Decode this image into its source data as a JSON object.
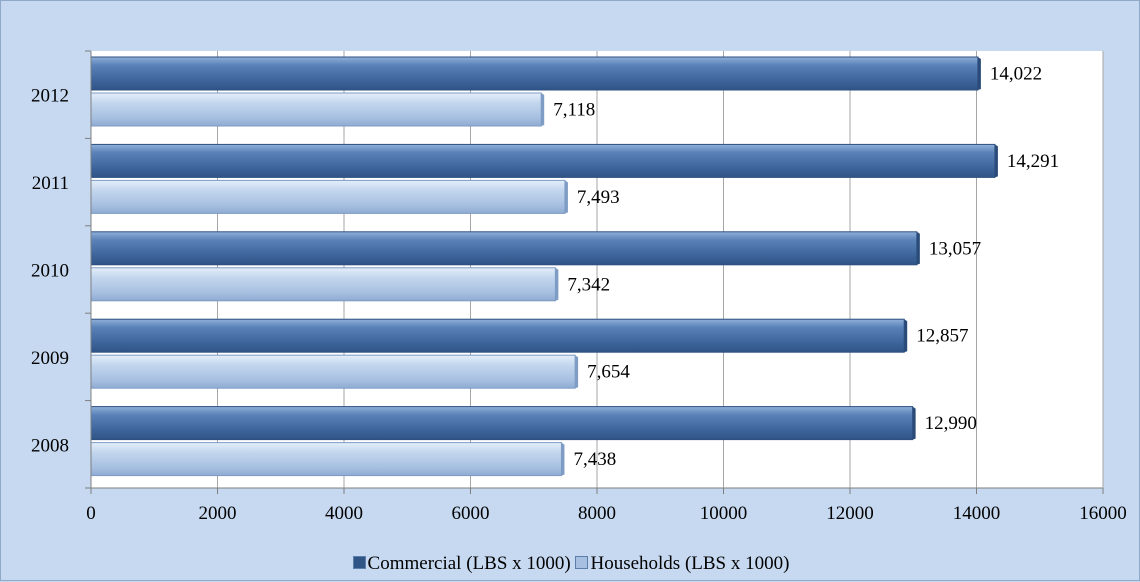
{
  "chart_data": {
    "type": "bar",
    "orientation": "horizontal",
    "categories": [
      "2008",
      "2009",
      "2010",
      "2011",
      "2012"
    ],
    "series": [
      {
        "name": "Commercial (LBS x 1000)",
        "values": [
          12990,
          12857,
          13057,
          14291,
          14022
        ],
        "labels": [
          "12,990",
          "12,857",
          "13,057",
          "14,291",
          "14,022"
        ],
        "color": "#4a72a8"
      },
      {
        "name": "Households (LBS x 1000)",
        "values": [
          7438,
          7654,
          7342,
          7493,
          7118
        ],
        "labels": [
          "7,438",
          "7,654",
          "7,342",
          "7,493",
          "7,118"
        ],
        "color": "#b4cbe6"
      }
    ],
    "x_ticks": [
      "0",
      "2000",
      "4000",
      "6000",
      "8000",
      "10000",
      "12000",
      "14000",
      "16000"
    ],
    "xlim": [
      0,
      16000
    ],
    "grid": "vertical",
    "legend_position": "bottom",
    "background": "#c6d9f0",
    "plot_background": "#ffffff"
  }
}
